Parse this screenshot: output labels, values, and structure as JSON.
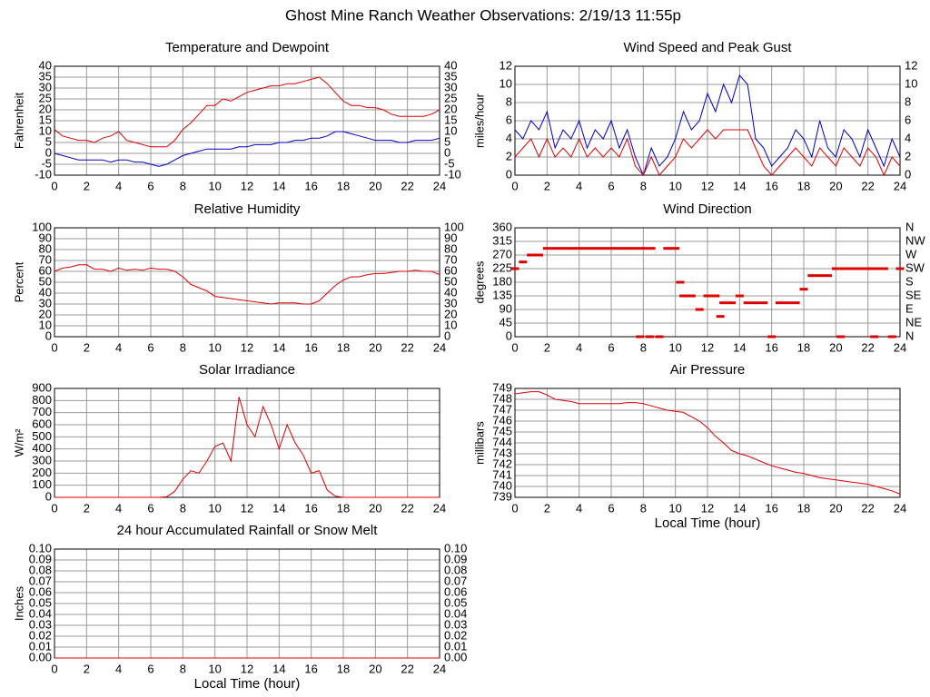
{
  "title": "Ghost Mine Ranch Weather Observations: 2/19/13 11:55p",
  "chart_data": [
    {
      "type": "line",
      "title": "Temperature and Dewpoint",
      "ylabel": "Fahrenheit",
      "mirror_ticks": true,
      "xlim": [
        0,
        24
      ],
      "xticks": [
        0,
        2,
        4,
        6,
        8,
        10,
        12,
        14,
        16,
        18,
        20,
        22,
        24
      ],
      "ylim": [
        -10,
        40
      ],
      "yticks": [
        -10,
        -5,
        0,
        5,
        10,
        15,
        20,
        25,
        30,
        35,
        40
      ],
      "grid": true,
      "x": [
        0,
        0.5,
        1,
        1.5,
        2,
        2.5,
        3,
        3.5,
        4,
        4.5,
        5,
        5.5,
        6,
        6.5,
        7,
        7.5,
        8,
        8.5,
        9,
        9.5,
        10,
        10.5,
        11,
        11.5,
        12,
        12.5,
        13,
        13.5,
        14,
        14.5,
        15,
        15.5,
        16,
        16.5,
        17,
        17.5,
        18,
        18.5,
        19,
        19.5,
        20,
        20.5,
        21,
        21.5,
        22,
        22.5,
        23,
        23.5,
        24
      ],
      "series": [
        {
          "color": "#e00000",
          "values": [
            11,
            8,
            7,
            6,
            6,
            5,
            7,
            8,
            10,
            6,
            5,
            4,
            3,
            3,
            3,
            6,
            11,
            14,
            18,
            22,
            22,
            25,
            24,
            26,
            28,
            29,
            30,
            31,
            31,
            32,
            32,
            33,
            34,
            35,
            32,
            28,
            24,
            22,
            22,
            21,
            21,
            20,
            18,
            17,
            17,
            17,
            17,
            18,
            20
          ]
        },
        {
          "color": "#0000c8",
          "values": [
            0,
            -1,
            -2,
            -3,
            -3,
            -3,
            -3,
            -4,
            -3,
            -3,
            -4,
            -4,
            -5,
            -6,
            -5,
            -3,
            -1,
            0,
            1,
            2,
            2,
            2,
            2,
            3,
            3,
            4,
            4,
            4,
            5,
            5,
            6,
            6,
            7,
            7,
            8,
            10,
            10,
            9,
            8,
            7,
            6,
            6,
            6,
            5,
            5,
            6,
            6,
            6,
            7
          ]
        }
      ]
    },
    {
      "type": "line",
      "title": "Wind Speed and Peak Gust",
      "ylabel": "miles/hour",
      "mirror_ticks": true,
      "xlim": [
        0,
        24
      ],
      "xticks": [
        0,
        2,
        4,
        6,
        8,
        10,
        12,
        14,
        16,
        18,
        20,
        22,
        24
      ],
      "ylim": [
        0,
        12
      ],
      "yticks": [
        0,
        2,
        4,
        6,
        8,
        10,
        12
      ],
      "grid": true,
      "x": [
        0,
        0.5,
        1,
        1.5,
        2,
        2.5,
        3,
        3.5,
        4,
        4.5,
        5,
        5.5,
        6,
        6.5,
        7,
        7.5,
        8,
        8.5,
        9,
        9.5,
        10,
        10.5,
        11,
        11.5,
        12,
        12.5,
        13,
        13.5,
        14,
        14.5,
        15,
        15.5,
        16,
        16.5,
        17,
        17.5,
        18,
        18.5,
        19,
        19.5,
        20,
        20.5,
        21,
        21.5,
        22,
        22.5,
        23,
        23.5,
        24
      ],
      "series": [
        {
          "color": "#0000c8",
          "values": [
            5,
            4,
            6,
            5,
            7,
            3,
            5,
            4,
            6,
            3,
            5,
            4,
            6,
            3,
            5,
            2,
            0,
            3,
            1,
            2,
            4,
            7,
            5,
            6,
            9,
            7,
            10,
            8,
            11,
            10,
            4,
            3,
            1,
            2,
            3,
            5,
            4,
            2,
            6,
            3,
            2,
            5,
            4,
            2,
            5,
            3,
            1,
            4,
            2
          ]
        },
        {
          "color": "#e00000",
          "values": [
            2,
            3,
            4,
            2,
            4,
            2,
            3,
            2,
            4,
            2,
            3,
            2,
            3,
            2,
            4,
            1,
            0,
            2,
            0,
            1,
            2,
            4,
            3,
            4,
            5,
            4,
            5,
            5,
            5,
            5,
            3,
            1,
            0,
            1,
            2,
            3,
            2,
            1,
            3,
            2,
            1,
            3,
            2,
            1,
            3,
            2,
            0,
            2,
            1
          ]
        }
      ]
    },
    {
      "type": "line",
      "title": "Relative Humidity",
      "ylabel": "Percent",
      "mirror_ticks": true,
      "xlim": [
        0,
        24
      ],
      "xticks": [
        0,
        2,
        4,
        6,
        8,
        10,
        12,
        14,
        16,
        18,
        20,
        22,
        24
      ],
      "ylim": [
        0,
        100
      ],
      "yticks": [
        0,
        10,
        20,
        30,
        40,
        50,
        60,
        70,
        80,
        90,
        100
      ],
      "grid": true,
      "x": [
        0,
        0.5,
        1,
        1.5,
        2,
        2.5,
        3,
        3.5,
        4,
        4.5,
        5,
        5.5,
        6,
        6.5,
        7,
        7.5,
        8,
        8.5,
        9,
        9.5,
        10,
        10.5,
        11,
        11.5,
        12,
        12.5,
        13,
        13.5,
        14,
        14.5,
        15,
        15.5,
        16,
        16.5,
        17,
        17.5,
        18,
        18.5,
        19,
        19.5,
        20,
        20.5,
        21,
        21.5,
        22,
        22.5,
        23,
        23.5,
        24
      ],
      "series": [
        {
          "color": "#e00000",
          "values": [
            60,
            63,
            64,
            66,
            66,
            62,
            62,
            60,
            63,
            61,
            62,
            61,
            63,
            62,
            62,
            60,
            55,
            48,
            45,
            42,
            37,
            36,
            35,
            34,
            33,
            32,
            31,
            30,
            31,
            31,
            31,
            30,
            30,
            33,
            40,
            47,
            52,
            55,
            55,
            57,
            58,
            58,
            59,
            60,
            60,
            61,
            60,
            60,
            57
          ]
        }
      ]
    },
    {
      "type": "scatter",
      "title": "Wind Direction",
      "ylabel": "degrees",
      "xlim": [
        0,
        24
      ],
      "xticks": [
        0,
        2,
        4,
        6,
        8,
        10,
        12,
        14,
        16,
        18,
        20,
        22,
        24
      ],
      "ylim": [
        0,
        360
      ],
      "yticks": [
        0,
        45,
        90,
        135,
        180,
        225,
        270,
        315,
        360
      ],
      "grid": true,
      "y2lim": [
        0,
        360
      ],
      "y2ticks": [
        {
          "value": 0,
          "label": "N"
        },
        {
          "value": 45,
          "label": "NE"
        },
        {
          "value": 90,
          "label": "E"
        },
        {
          "value": 135,
          "label": "SE"
        },
        {
          "value": 180,
          "label": "S"
        },
        {
          "value": 225,
          "label": "SW"
        },
        {
          "value": 270,
          "label": "W"
        },
        {
          "value": 315,
          "label": "NW"
        },
        {
          "value": 360,
          "label": "N"
        }
      ],
      "x": [
        0,
        0.5,
        1,
        1.5,
        2,
        2.5,
        3,
        3.5,
        4,
        4.5,
        5,
        5.5,
        6,
        6.5,
        7,
        7.5,
        7.8,
        8,
        8.4,
        8.5,
        9,
        9.5,
        10,
        10.3,
        10.5,
        11,
        11.5,
        12,
        12.5,
        12.8,
        13,
        13.5,
        14,
        14.5,
        15,
        15.5,
        16,
        16.5,
        17,
        17.5,
        18,
        18.5,
        19,
        19.5,
        20,
        20.3,
        20.5,
        21,
        21.5,
        22,
        22.4,
        22.5,
        23,
        23.5,
        24
      ],
      "series": [
        {
          "color": "#e00000",
          "values": [
            225,
            247,
            270,
            270,
            292,
            292,
            292,
            292,
            292,
            292,
            292,
            292,
            292,
            292,
            292,
            292,
            0,
            292,
            0,
            292,
            0,
            292,
            292,
            180,
            135,
            135,
            90,
            135,
            135,
            67,
            112,
            112,
            135,
            112,
            112,
            112,
            0,
            112,
            112,
            112,
            157,
            202,
            202,
            202,
            225,
            0,
            225,
            225,
            225,
            225,
            0,
            225,
            225,
            0,
            225
          ]
        }
      ]
    },
    {
      "type": "line",
      "title": "Solar Irradiance",
      "ylabel": "W/m²",
      "xlim": [
        0,
        24
      ],
      "xticks": [
        0,
        2,
        4,
        6,
        8,
        10,
        12,
        14,
        16,
        18,
        20,
        22,
        24
      ],
      "ylim": [
        0,
        900
      ],
      "yticks": [
        0,
        100,
        200,
        300,
        400,
        500,
        600,
        700,
        800,
        900
      ],
      "grid": true,
      "x": [
        0,
        0.5,
        1,
        1.5,
        2,
        2.5,
        3,
        3.5,
        4,
        4.5,
        5,
        5.5,
        6,
        6.5,
        7,
        7.5,
        8,
        8.5,
        9,
        9.5,
        10,
        10.5,
        11,
        11.5,
        12,
        12.5,
        13,
        13.5,
        14,
        14.5,
        15,
        15.5,
        16,
        16.5,
        17,
        17.5,
        18,
        18.5,
        19,
        19.5,
        20,
        20.5,
        21,
        21.5,
        22,
        22.5,
        23,
        23.5,
        24
      ],
      "series": [
        {
          "color": "#e00000",
          "values": [
            0,
            0,
            0,
            0,
            0,
            0,
            0,
            0,
            0,
            0,
            0,
            0,
            0,
            0,
            5,
            50,
            150,
            220,
            200,
            300,
            420,
            450,
            300,
            830,
            600,
            500,
            750,
            600,
            400,
            600,
            450,
            350,
            200,
            220,
            60,
            10,
            0,
            0,
            0,
            0,
            0,
            0,
            0,
            0,
            0,
            0,
            0,
            0,
            0
          ]
        }
      ]
    },
    {
      "type": "line",
      "title": "Air Pressure",
      "ylabel": "millibars",
      "xlabel": "Local Time (hour)",
      "xlim": [
        0,
        24
      ],
      "xticks": [
        0,
        2,
        4,
        6,
        8,
        10,
        12,
        14,
        16,
        18,
        20,
        22,
        24
      ],
      "ylim": [
        739,
        749
      ],
      "yticks": [
        739,
        740,
        741,
        742,
        743,
        744,
        745,
        746,
        747,
        748,
        749
      ],
      "grid": true,
      "x": [
        0,
        0.5,
        1,
        1.5,
        2,
        2.5,
        3,
        3.5,
        4,
        4.5,
        5,
        5.5,
        6,
        6.5,
        7,
        7.5,
        8,
        8.5,
        9,
        9.5,
        10,
        10.5,
        11,
        11.5,
        12,
        12.5,
        13,
        13.5,
        14,
        14.5,
        15,
        15.5,
        16,
        16.5,
        17,
        17.5,
        18,
        18.5,
        19,
        19.5,
        20,
        20.5,
        21,
        21.5,
        22,
        22.5,
        23,
        23.5,
        24
      ],
      "series": [
        {
          "color": "#e00000",
          "values": [
            748.5,
            748.6,
            748.7,
            748.7,
            748.4,
            748.0,
            747.9,
            747.8,
            747.6,
            747.6,
            747.6,
            747.6,
            747.6,
            747.6,
            747.7,
            747.7,
            747.6,
            747.4,
            747.2,
            747.0,
            746.9,
            746.8,
            746.4,
            746.0,
            745.4,
            744.6,
            744.0,
            743.3,
            743.0,
            742.8,
            742.5,
            742.2,
            741.9,
            741.7,
            741.5,
            741.3,
            741.2,
            741.0,
            740.8,
            740.7,
            740.6,
            740.5,
            740.4,
            740.3,
            740.2,
            740.0,
            739.8,
            739.6,
            739.3
          ]
        }
      ]
    },
    {
      "type": "line",
      "title": "24 hour Accumulated Rainfall or Snow Melt",
      "ylabel": "Inches",
      "xlabel": "Local Time (hour)",
      "mirror_ticks": true,
      "xlim": [
        0,
        24
      ],
      "xticks": [
        0,
        2,
        4,
        6,
        8,
        10,
        12,
        14,
        16,
        18,
        20,
        22,
        24
      ],
      "ylim": [
        0,
        0.1
      ],
      "yticks": [
        {
          "value": 0,
          "label": "0.00"
        },
        {
          "value": 0.01,
          "label": "0.01"
        },
        {
          "value": 0.02,
          "label": "0.02"
        },
        {
          "value": 0.03,
          "label": "0.03"
        },
        {
          "value": 0.04,
          "label": "0.04"
        },
        {
          "value": 0.05,
          "label": "0.05"
        },
        {
          "value": 0.06,
          "label": "0.06"
        },
        {
          "value": 0.07,
          "label": "0.07"
        },
        {
          "value": 0.08,
          "label": "0.08"
        },
        {
          "value": 0.09,
          "label": "0.09"
        },
        {
          "value": 0.1,
          "label": "0.10"
        }
      ],
      "grid": true,
      "x": [
        0,
        24
      ],
      "series": [
        {
          "color": "#e00000",
          "values": [
            0,
            0
          ]
        }
      ]
    }
  ]
}
